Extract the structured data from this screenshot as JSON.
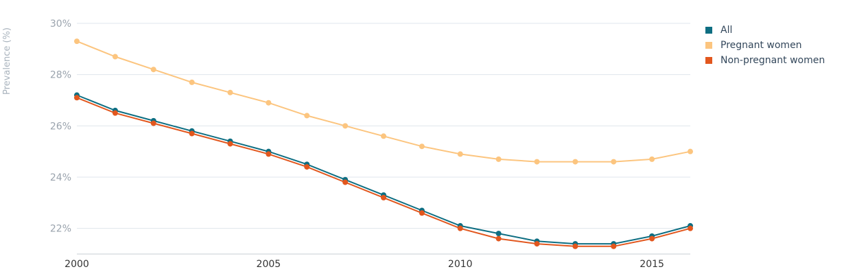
{
  "chart_data": {
    "type": "line",
    "title": "",
    "xlabel": "",
    "ylabel": "Prevalence (%)",
    "x": [
      2000,
      2001,
      2002,
      2003,
      2004,
      2005,
      2006,
      2007,
      2008,
      2009,
      2010,
      2011,
      2012,
      2013,
      2014,
      2015,
      2016
    ],
    "xticks": [
      2000,
      2005,
      2010,
      2015
    ],
    "xtick_labels": [
      "2000",
      "2005",
      "2010",
      "2015"
    ],
    "yticks": [
      22,
      24,
      26,
      28,
      30
    ],
    "ytick_labels": [
      "22%",
      "24%",
      "26%",
      "28%",
      "30%"
    ],
    "ylim": [
      21,
      30
    ],
    "xlim": [
      2000,
      2016
    ],
    "grid": true,
    "legend_position": "top-right",
    "series": [
      {
        "name": "All",
        "color": "#0e6e82",
        "values": [
          27.2,
          26.6,
          26.2,
          25.8,
          25.4,
          25.0,
          24.5,
          23.9,
          23.3,
          22.7,
          22.1,
          21.8,
          21.5,
          21.4,
          21.4,
          21.7,
          22.1
        ]
      },
      {
        "name": "Pregnant women",
        "color": "#fcc57f",
        "values": [
          29.3,
          28.7,
          28.2,
          27.7,
          27.3,
          26.9,
          26.4,
          26.0,
          25.6,
          25.2,
          24.9,
          24.7,
          24.6,
          24.6,
          24.6,
          24.7,
          25.0
        ]
      },
      {
        "name": "Non-pregnant women",
        "color": "#e2571e",
        "values": [
          27.1,
          26.5,
          26.1,
          25.7,
          25.3,
          24.9,
          24.4,
          23.8,
          23.2,
          22.6,
          22.0,
          21.6,
          21.4,
          21.3,
          21.3,
          21.6,
          22.0
        ]
      }
    ]
  }
}
